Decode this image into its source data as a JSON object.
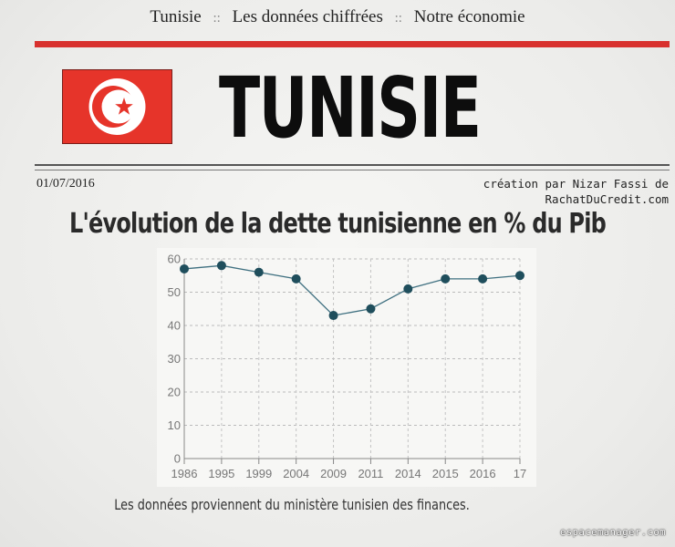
{
  "nav": {
    "items": [
      "Tunisie",
      "Les données chiffrées",
      "Notre économie"
    ],
    "separator": "::"
  },
  "masthead": {
    "title": "TUNISIE"
  },
  "header": {
    "date": "01/07/2016",
    "credit_line1": "création par Nizar Fassi de",
    "credit_line2": "RachatDuCredit.com"
  },
  "colors": {
    "accent_red": "#d8312e",
    "flag_red": "#e6342a",
    "series": "#1f4e5c",
    "line": "#3f7080"
  },
  "chart_data": {
    "type": "line",
    "title": "L'évolution de la dette tunisienne en % du Pib",
    "categories": [
      "1986",
      "1995",
      "1999",
      "2004",
      "2009",
      "2011",
      "2014",
      "2015",
      "2016",
      "17"
    ],
    "values": [
      57,
      58,
      56,
      54,
      43,
      45,
      51,
      54,
      54,
      55
    ],
    "ylim": [
      0,
      60
    ],
    "yticks": [
      0,
      10,
      20,
      30,
      40,
      50,
      60
    ],
    "grid": true,
    "xlabel": "",
    "ylabel": ""
  },
  "footer": {
    "source": "Les données proviennent du ministère tunisien des finances.",
    "watermark": "espacemanager.com"
  }
}
